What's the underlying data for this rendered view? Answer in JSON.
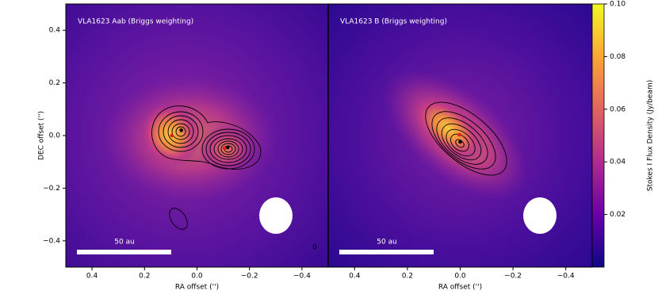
{
  "chart_data": [
    {
      "type": "image",
      "title": "VLA1623 Aab (Briggs weighting)",
      "x_label": "RA offset ('')",
      "y_label": "DEC offset ('')",
      "xlim": [
        0.5,
        -0.5
      ],
      "ylim": [
        -0.5,
        0.5
      ],
      "xticks": [
        0.4,
        0.2,
        {
          "value": 0,
          "label": "0.0"
        },
        {
          "value": -0.2,
          "label": "−0.2"
        },
        {
          "value": -0.4,
          "label": "−0.4"
        }
      ],
      "yticks": [
        {
          "value": -0.4,
          "label": "−0.4"
        },
        {
          "value": -0.2,
          "label": "−0.2"
        },
        {
          "value": 0,
          "label": "0.0"
        },
        0.2,
        0.4
      ],
      "scale_bar": "50 au",
      "annotation": "0",
      "markers": [
        {
          "color": "#000000",
          "x": [
            0.06,
            -0.117
          ],
          "y": [
            0.02,
            -0.045
          ]
        },
        {
          "color": "#e41a1c",
          "x": [
            0.096,
            -0.105
          ],
          "y": [
            0,
            -0.048
          ]
        }
      ]
    },
    {
      "type": "image",
      "title": "VLA1623 B (Briggs weighting)",
      "x_label": "RA offset ('')",
      "xlim": [
        0.5,
        -0.5
      ],
      "ylim": [
        -0.5,
        0.5
      ],
      "xticks": [
        0.4,
        0.2,
        {
          "value": 0,
          "label": "0.0"
        },
        {
          "value": -0.2,
          "label": "−0.2"
        },
        {
          "value": -0.4,
          "label": "−0.4"
        }
      ],
      "scale_bar": "50 au",
      "markers": [
        {
          "color": "#000000",
          "x": [
            0
          ],
          "y": [
            -0.024
          ]
        },
        {
          "color": "#e41a1c",
          "x": [
            0.003
          ],
          "y": [
            0.003
          ]
        }
      ]
    },
    {
      "type": "colorbar",
      "label": "Stokes I Flux Density (Jy/beam)",
      "clim": [
        0,
        0.1
      ],
      "ticks": [
        0.02,
        0.04,
        0.06,
        0.08,
        {
          "value": 0.1,
          "label": "0.10"
        }
      ],
      "colors": [
        "#0d0887",
        "#6a00a8",
        "#b12a90",
        "#e16462",
        "#fca636",
        "#f0f921"
      ]
    }
  ]
}
